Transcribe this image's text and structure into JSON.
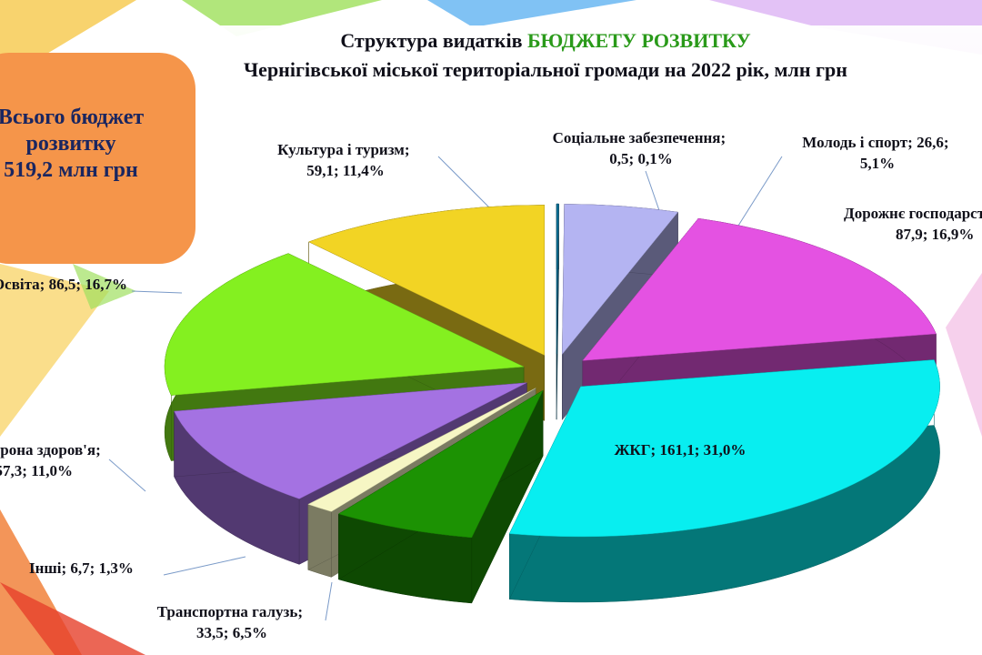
{
  "chart_data": {
    "type": "pie",
    "title": "Структура видатків ",
    "title_highlight": "БЮДЖЕТУ РОЗВИТКУ",
    "subtitle": "Чернігівської міської територіальної громади на 2022 рік, млн грн",
    "annotation": [
      "Всього бюджет",
      "розвитку",
      "519,2 млн грн"
    ],
    "separator": "; ",
    "categories": [
      "Соціальне забезпечення",
      "Молодь і спорт",
      "Дорожнє господарство",
      "ЖКГ",
      "Транспортна галузь",
      "Інші",
      "Охорона здоров'я",
      "Освіта",
      "Культура і туризм"
    ],
    "values": [
      0.5,
      26.6,
      87.9,
      161.1,
      33.5,
      6.7,
      57.3,
      86.5,
      59.1
    ],
    "value_labels": [
      "0,5",
      "26,6",
      "87,9",
      "161,1",
      "33,5",
      "6,7",
      "57,3",
      "86,5",
      "59,1"
    ],
    "percents": [
      0.1,
      5.1,
      16.9,
      31.0,
      6.5,
      1.3,
      11.0,
      16.7,
      11.4
    ],
    "percent_labels": [
      "0,1%",
      "5,1%",
      "16,9%",
      "31,0%",
      "6,5%",
      "1,3%",
      "11,0%",
      "16,7%",
      "11,4%"
    ],
    "colors": [
      "#0b6f95",
      "#b4b4f2",
      "#e452e2",
      "#08eef0",
      "#1c9203",
      "#f6f6c4",
      "#a472e2",
      "#84f020",
      "#f2d424"
    ]
  }
}
